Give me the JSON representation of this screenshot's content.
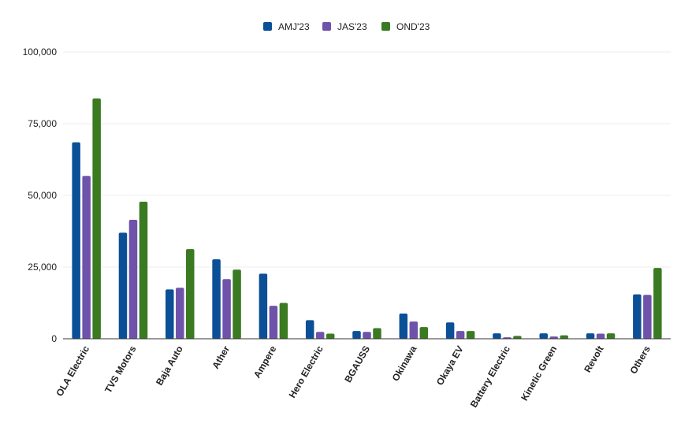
{
  "chart_data": {
    "type": "bar",
    "title": "",
    "xlabel": "",
    "ylabel": "",
    "ylim": [
      0,
      100000
    ],
    "yticks": [
      0,
      25000,
      50000,
      75000,
      100000
    ],
    "ytick_labels": [
      "0",
      "25,000",
      "50,000",
      "75,000",
      "100,000"
    ],
    "grid": true,
    "legend_position": "top-center",
    "categories": [
      "OLA Electric",
      "TVS Motors",
      "Baja Auto",
      "Ather",
      "Ampere",
      "Hero Electric",
      "BGAUSS",
      "Okinawa",
      "Okaya EV",
      "Battery Electric",
      "Kinetic Green",
      "Revolt",
      "Others"
    ],
    "series": [
      {
        "name": "AMJ'23",
        "color": "#0b4f97",
        "values": [
          68500,
          37000,
          17200,
          27700,
          22700,
          6500,
          2700,
          8800,
          5700,
          1900,
          1900,
          1900,
          15500
        ]
      },
      {
        "name": "JAS'23",
        "color": "#6f53aa",
        "values": [
          56800,
          41500,
          17800,
          20800,
          11500,
          2400,
          2400,
          6000,
          2700,
          500,
          800,
          1800,
          15300
        ]
      },
      {
        "name": "OND'23",
        "color": "#3a7a21",
        "values": [
          83800,
          47800,
          31300,
          24100,
          12500,
          1800,
          3700,
          4100,
          2700,
          1000,
          1200,
          1900,
          24700
        ]
      }
    ]
  }
}
